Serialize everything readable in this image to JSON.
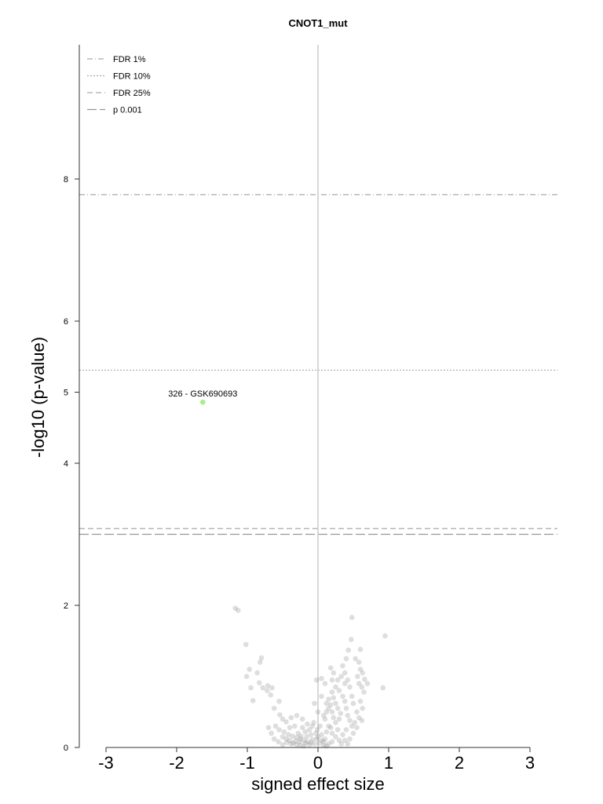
{
  "chart_data": {
    "type": "scatter",
    "title": "CNOT1_mut",
    "xlabel": "signed effect size",
    "ylabel": "-log10 (p-value)",
    "xlim": [
      -3.4,
      3.4
    ],
    "ylim": [
      0,
      9.8
    ],
    "x_ticks": [
      -3,
      -2,
      -1,
      0,
      1,
      2,
      3
    ],
    "y_ticks": [
      0,
      2,
      4,
      5,
      6,
      8
    ],
    "grid": false,
    "legend_position": "top-left",
    "threshold_lines": [
      {
        "label": "FDR 1%",
        "y": 7.78,
        "style": "dashdot",
        "color": "#aaaaaa"
      },
      {
        "label": "FDR 10%",
        "y": 5.31,
        "style": "dotted",
        "color": "#aaaaaa"
      },
      {
        "label": "FDR 25%",
        "y": 3.08,
        "style": "dashed",
        "color": "#aaaaaa"
      },
      {
        "label": "p 0.001",
        "y": 3.0,
        "style": "longdash",
        "color": "#999999"
      }
    ],
    "vertical_line": {
      "x": 0,
      "color": "#cccccc"
    },
    "highlight": {
      "label": "326 - GSK690693",
      "x": -1.63,
      "y": 4.86,
      "color": "#a6f08a"
    },
    "point_color": "#888888",
    "points": [
      [
        -1.17,
        1.96
      ],
      [
        -1.13,
        1.93
      ],
      [
        -1.02,
        1.45
      ],
      [
        -0.8,
        1.26
      ],
      [
        -0.82,
        1.2
      ],
      [
        -0.97,
        1.1
      ],
      [
        -0.86,
        1.05
      ],
      [
        -1.01,
        1.0
      ],
      [
        -0.83,
        0.91
      ],
      [
        -0.95,
        0.84
      ],
      [
        -0.78,
        0.84
      ],
      [
        -0.71,
        0.87
      ],
      [
        -0.65,
        0.84
      ],
      [
        -0.72,
        0.8
      ],
      [
        -0.67,
        0.74
      ],
      [
        -0.55,
        0.65
      ],
      [
        -0.92,
        0.66
      ],
      [
        -0.62,
        0.55
      ],
      [
        -0.54,
        0.46
      ],
      [
        -0.5,
        0.4
      ],
      [
        -0.45,
        0.36
      ],
      [
        -0.38,
        0.42
      ],
      [
        -0.3,
        0.45
      ],
      [
        -0.22,
        0.4
      ],
      [
        -0.15,
        0.33
      ],
      [
        -0.6,
        0.3
      ],
      [
        -0.55,
        0.25
      ],
      [
        -0.48,
        0.22
      ],
      [
        -0.42,
        0.18
      ],
      [
        -0.36,
        0.16
      ],
      [
        -0.3,
        0.14
      ],
      [
        -0.25,
        0.12
      ],
      [
        -0.2,
        0.1
      ],
      [
        -0.15,
        0.08
      ],
      [
        -0.1,
        0.07
      ],
      [
        -0.05,
        0.05
      ],
      [
        -0.35,
        0.06
      ],
      [
        -0.3,
        0.04
      ],
      [
        -0.25,
        0.03
      ],
      [
        -0.2,
        0.02
      ],
      [
        -0.4,
        0.1
      ],
      [
        -0.45,
        0.12
      ],
      [
        -0.5,
        0.15
      ],
      [
        -0.28,
        0.2
      ],
      [
        -0.18,
        0.22
      ],
      [
        -0.12,
        0.25
      ],
      [
        -0.08,
        0.3
      ],
      [
        -0.06,
        0.35
      ],
      [
        -0.03,
        0.2
      ],
      [
        -0.02,
        0.12
      ],
      [
        -0.22,
        0.28
      ],
      [
        -0.33,
        0.3
      ],
      [
        -0.4,
        0.28
      ],
      [
        -0.1,
        0.18
      ],
      [
        -0.16,
        0.15
      ],
      [
        -0.26,
        0.08
      ],
      [
        -0.32,
        0.09
      ],
      [
        -0.38,
        0.05
      ],
      [
        -0.44,
        0.07
      ],
      [
        -0.5,
        0.04
      ],
      [
        -0.56,
        0.08
      ],
      [
        -0.62,
        0.12
      ],
      [
        -0.66,
        0.2
      ],
      [
        -0.7,
        0.28
      ],
      [
        -0.12,
        0.04
      ],
      [
        -0.08,
        0.11
      ],
      [
        -0.18,
        0.06
      ],
      [
        -0.24,
        0.16
      ],
      [
        -0.02,
        0.95
      ],
      [
        0.05,
        0.97
      ],
      [
        -0.05,
        0.62
      ],
      [
        0.0,
        0.5
      ],
      [
        0.03,
        0.3
      ],
      [
        0.05,
        0.18
      ],
      [
        0.08,
        0.08
      ],
      [
        0.1,
        0.12
      ],
      [
        0.12,
        0.22
      ],
      [
        0.15,
        0.3
      ],
      [
        0.1,
        0.4
      ],
      [
        0.12,
        0.5
      ],
      [
        0.15,
        0.55
      ],
      [
        0.18,
        0.6
      ],
      [
        0.2,
        0.5
      ],
      [
        0.22,
        0.42
      ],
      [
        0.25,
        0.35
      ],
      [
        0.18,
        0.28
      ],
      [
        0.2,
        0.2
      ],
      [
        0.25,
        0.15
      ],
      [
        0.28,
        0.25
      ],
      [
        0.3,
        0.4
      ],
      [
        0.32,
        0.48
      ],
      [
        0.28,
        0.55
      ],
      [
        0.25,
        0.62
      ],
      [
        0.22,
        0.7
      ],
      [
        0.2,
        0.78
      ],
      [
        0.25,
        0.85
      ],
      [
        0.3,
        0.8
      ],
      [
        0.35,
        0.72
      ],
      [
        0.38,
        0.65
      ],
      [
        0.4,
        0.55
      ],
      [
        0.42,
        0.45
      ],
      [
        0.45,
        0.38
      ],
      [
        0.48,
        0.3
      ],
      [
        0.4,
        0.25
      ],
      [
        0.35,
        0.18
      ],
      [
        0.38,
        0.1
      ],
      [
        0.42,
        0.05
      ],
      [
        0.45,
        0.12
      ],
      [
        0.5,
        0.2
      ],
      [
        0.52,
        0.35
      ],
      [
        0.55,
        0.5
      ],
      [
        0.5,
        0.62
      ],
      [
        0.48,
        0.72
      ],
      [
        0.45,
        0.85
      ],
      [
        0.42,
        0.95
      ],
      [
        0.38,
        1.05
      ],
      [
        0.35,
        1.15
      ],
      [
        0.4,
        1.25
      ],
      [
        0.43,
        1.37
      ],
      [
        0.47,
        1.52
      ],
      [
        0.48,
        1.83
      ],
      [
        0.56,
        1.0
      ],
      [
        0.6,
        1.1
      ],
      [
        0.58,
        0.9
      ],
      [
        0.62,
        0.85
      ],
      [
        0.65,
        0.78
      ],
      [
        0.6,
        0.65
      ],
      [
        0.63,
        0.55
      ],
      [
        0.58,
        0.42
      ],
      [
        0.62,
        0.38
      ],
      [
        0.55,
        0.28
      ],
      [
        0.58,
        1.2
      ],
      [
        0.53,
        1.25
      ],
      [
        0.6,
        1.38
      ],
      [
        0.63,
        1.05
      ],
      [
        0.66,
        0.96
      ],
      [
        0.7,
        0.9
      ],
      [
        0.95,
        1.57
      ],
      [
        0.92,
        0.84
      ],
      [
        0.15,
        0.05
      ],
      [
        0.2,
        0.08
      ],
      [
        0.05,
        0.1
      ],
      [
        0.08,
        0.03
      ],
      [
        0.12,
        0.02
      ],
      [
        0.0,
        0.15
      ],
      [
        0.02,
        0.06
      ],
      [
        -0.01,
        0.25
      ],
      [
        0.3,
        0.1
      ],
      [
        0.33,
        0.05
      ],
      [
        0.05,
        0.72
      ],
      [
        0.1,
        0.9
      ],
      [
        0.2,
        0.95
      ],
      [
        0.28,
        0.95
      ],
      [
        0.33,
        1.0
      ],
      [
        0.38,
        0.9
      ],
      [
        0.22,
        1.05
      ],
      [
        0.18,
        1.12
      ],
      [
        0.12,
        0.62
      ],
      [
        0.08,
        0.45
      ],
      [
        0.15,
        0.68
      ]
    ]
  }
}
